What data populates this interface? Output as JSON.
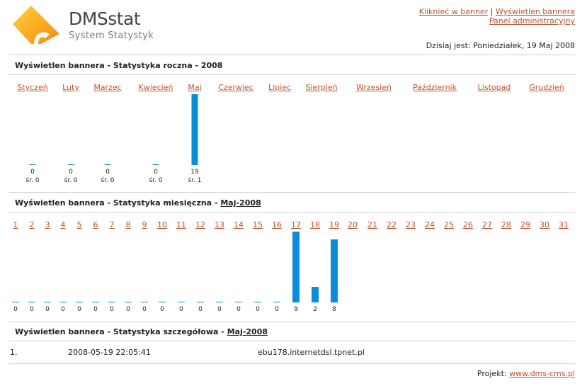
{
  "header": {
    "logo_title": "DMSstat",
    "logo_subtitle": "System Statystyk",
    "links": [
      "Kliknieć w banner",
      "Wyświetlen bannera",
      "Panel administracyjny"
    ],
    "link_separator": "|",
    "date_text": "Dzisiaj jest: Poniedziałek, 19 Maj 2008"
  },
  "yearly": {
    "title": "Wyświetlen bannera - Statystyka roczna - 2008",
    "months": [
      "Styczeń",
      "Luty",
      "Marzec",
      "Kwiecień",
      "Maj",
      "Czerwiec",
      "Lipiec",
      "Sierpień",
      "Wrzesień",
      "Październik",
      "Listopad",
      "Grudzień"
    ],
    "chart_data": {
      "type": "bar",
      "categories": [
        "Styczeń",
        "Luty",
        "Marzec",
        "Kwiecień",
        "Maj",
        "Czerwiec",
        "Lipiec",
        "Sierpień",
        "Wrzesień",
        "Październik",
        "Listopad",
        "Grudzień"
      ],
      "values": [
        0,
        0,
        0,
        0,
        19,
        null,
        null,
        null,
        null,
        null,
        null,
        null
      ],
      "averages": [
        "śr. 0",
        "śr. 0",
        "śr. 0",
        "śr. 0",
        "śr. 1"
      ],
      "ylim": [
        0,
        19
      ]
    }
  },
  "monthly": {
    "title_prefix": "Wyświetlen bannera - Statystyka miesięczna - ",
    "title_link": "Maj-2008",
    "chart_data": {
      "type": "bar",
      "categories": [
        "1",
        "2",
        "3",
        "4",
        "5",
        "6",
        "7",
        "8",
        "9",
        "10",
        "11",
        "12",
        "13",
        "14",
        "15",
        "16",
        "17",
        "18",
        "19",
        "20",
        "21",
        "22",
        "23",
        "24",
        "25",
        "26",
        "27",
        "28",
        "29",
        "30",
        "31"
      ],
      "values": [
        0,
        0,
        0,
        0,
        0,
        0,
        0,
        0,
        0,
        0,
        0,
        0,
        0,
        0,
        0,
        0,
        9,
        2,
        8,
        null,
        null,
        null,
        null,
        null,
        null,
        null,
        null,
        null,
        null,
        null,
        null
      ],
      "ylim": [
        0,
        9
      ]
    }
  },
  "detail": {
    "title_prefix": "Wyświetlen bannera - Statystyka szczegółowa - ",
    "title_link": "Maj-2008",
    "rows": [
      {
        "num": "1.",
        "datetime": "2008-05-19 22:05:41",
        "host": "ebu178.internetdsl.tpnet.pl"
      }
    ]
  },
  "footer": {
    "label": "Projekt:",
    "link": "www.dms-cms.pl"
  },
  "colors": {
    "bar": "#0a8ed9",
    "link": "#c0502a",
    "logo_orange": "#f7a21b"
  }
}
